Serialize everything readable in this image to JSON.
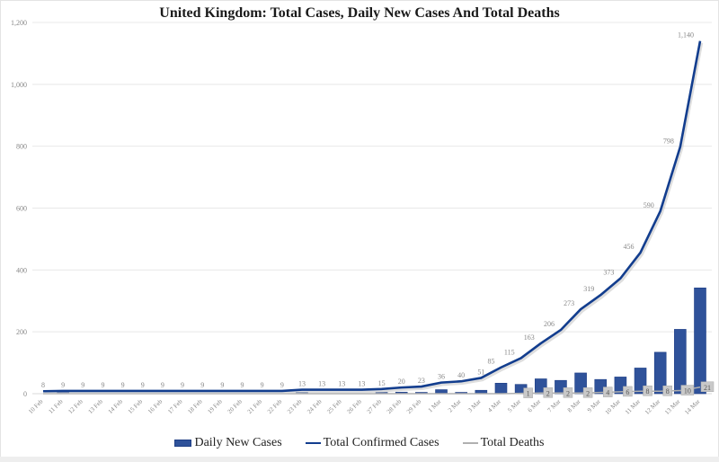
{
  "chart_data": {
    "type": "bar",
    "title": "United Kingdom: Total Cases, Daily New Cases And Total Deaths",
    "xlabel": "",
    "ylabel": "",
    "ylim": [
      0,
      1200
    ],
    "yticks": [
      0,
      200,
      400,
      600,
      800,
      1000,
      1200
    ],
    "ytick_labels": [
      "0",
      "200",
      "400",
      "600",
      "800",
      "1,000",
      "1,200"
    ],
    "grid": true,
    "legend_position": "bottom",
    "categories": [
      "10 Feb",
      "11 Feb",
      "12 Feb",
      "13 Feb",
      "14 Feb",
      "15 Feb",
      "16 Feb",
      "17 Feb",
      "18 Feb",
      "19 Feb",
      "20 Feb",
      "21 Feb",
      "22 Feb",
      "23 Feb",
      "24 Feb",
      "25 Feb",
      "26 Feb",
      "27 Feb",
      "28 Feb",
      "29 Feb",
      "1 Mar",
      "2 Mar",
      "3 Mar",
      "4 Mar",
      "5 Mar",
      "6 Mar",
      "7 Mar",
      "8 Mar",
      "9 Mar",
      "10 Mar",
      "11 Mar",
      "12 Mar",
      "13 Mar",
      "14 Mar"
    ],
    "series": [
      {
        "name": "Daily New Cases",
        "type": "bar",
        "color": "#2f529a",
        "values": [
          0,
          1,
          0,
          0,
          0,
          0,
          0,
          0,
          0,
          0,
          0,
          0,
          0,
          4,
          0,
          0,
          0,
          2,
          5,
          3,
          13,
          4,
          11,
          34,
          30,
          48,
          43,
          67,
          46,
          54,
          83,
          134,
          208,
          342
        ]
      },
      {
        "name": "Total Confirmed Cases",
        "type": "line",
        "color": "#123d8e",
        "values": [
          8,
          9,
          9,
          9,
          9,
          9,
          9,
          9,
          9,
          9,
          9,
          9,
          9,
          13,
          13,
          13,
          13,
          15,
          20,
          23,
          36,
          40,
          51,
          85,
          115,
          163,
          206,
          273,
          319,
          373,
          456,
          590,
          798,
          1140
        ],
        "labels": [
          "8",
          "9",
          "9",
          "9",
          "9",
          "9",
          "9",
          "9",
          "9",
          "9",
          "9",
          "9",
          "9",
          "13",
          "13",
          "13",
          "13",
          "15",
          "20",
          "23",
          "36",
          "40",
          "51",
          "85",
          "115",
          "163",
          "206",
          "273",
          "319",
          "373",
          "456",
          "590",
          "798",
          "1,140"
        ]
      },
      {
        "name": "Total Deaths",
        "type": "line",
        "color": "#b0b0b0",
        "values": [
          0,
          0,
          0,
          0,
          0,
          0,
          0,
          0,
          0,
          0,
          0,
          0,
          0,
          0,
          0,
          0,
          0,
          0,
          0,
          0,
          0,
          0,
          0,
          0,
          1,
          2,
          2,
          2,
          4,
          6,
          8,
          8,
          10,
          21
        ],
        "labels": [
          "",
          "",
          "",
          "",
          "",
          "",
          "",
          "",
          "",
          "",
          "",
          "",
          "",
          "",
          "",
          "",
          "",
          "",
          "",
          "",
          "",
          "",
          "",
          "",
          "1",
          "2",
          "2",
          "2",
          "4",
          "6",
          "8",
          "8",
          "10",
          "21"
        ]
      }
    ]
  },
  "legend": {
    "items": [
      "Daily New Cases",
      "Total Confirmed Cases",
      "Total Deaths"
    ]
  }
}
